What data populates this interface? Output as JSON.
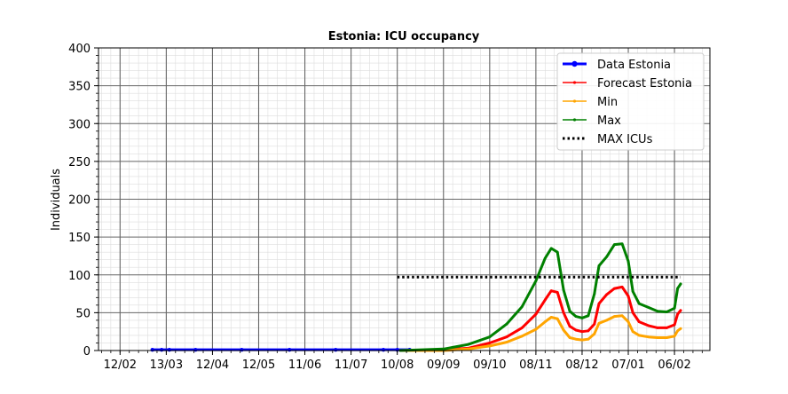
{
  "chart_data": {
    "type": "line",
    "title": "Estonia: ICU occupancy",
    "xlabel": "",
    "ylabel": "Individuals",
    "ylim": [
      0,
      400
    ],
    "yticks": [
      0,
      50,
      100,
      150,
      200,
      250,
      300,
      350,
      400
    ],
    "xlim": [
      "2020-01-29",
      "2021-03-01"
    ],
    "xticks": [
      {
        "date": "2020-02-12",
        "label": "12/02"
      },
      {
        "date": "2020-03-13",
        "label": "13/03"
      },
      {
        "date": "2020-04-12",
        "label": "12/04"
      },
      {
        "date": "2020-05-12",
        "label": "12/05"
      },
      {
        "date": "2020-06-11",
        "label": "11/06"
      },
      {
        "date": "2020-07-11",
        "label": "11/07"
      },
      {
        "date": "2020-08-10",
        "label": "10/08"
      },
      {
        "date": "2020-09-09",
        "label": "09/09"
      },
      {
        "date": "2020-10-09",
        "label": "09/10"
      },
      {
        "date": "2020-11-08",
        "label": "08/11"
      },
      {
        "date": "2020-12-08",
        "label": "08/12"
      },
      {
        "date": "2021-01-07",
        "label": "07/01"
      },
      {
        "date": "2021-02-06",
        "label": "06/02"
      }
    ],
    "grid": true,
    "legend_position": "top-right",
    "series": [
      {
        "name": "Data Estonia",
        "color": "#0000ff",
        "style": "solid-with-dot-markers",
        "x": [
          "2020-03-04",
          "2020-03-10",
          "2020-03-15",
          "2020-04-01",
          "2020-05-01",
          "2020-06-01",
          "2020-07-01",
          "2020-08-01",
          "2020-08-10",
          "2020-08-18"
        ],
        "y": [
          1,
          1,
          1,
          1,
          1,
          1,
          1,
          1,
          1,
          1
        ]
      },
      {
        "name": "Forecast Estonia",
        "color": "#ff0000",
        "style": "solid-small-markers",
        "x": [
          "2020-08-12",
          "2020-09-09",
          "2020-09-25",
          "2020-10-09",
          "2020-10-20",
          "2020-10-30",
          "2020-11-08",
          "2020-11-14",
          "2020-11-18",
          "2020-11-22",
          "2020-11-26",
          "2020-11-30",
          "2020-12-04",
          "2020-12-08",
          "2020-12-12",
          "2020-12-16",
          "2020-12-19",
          "2020-12-24",
          "2020-12-29",
          "2021-01-03",
          "2021-01-07",
          "2021-01-10",
          "2021-01-14",
          "2021-01-20",
          "2021-01-26",
          "2021-02-01",
          "2021-02-06",
          "2021-02-08",
          "2021-02-10"
        ],
        "y": [
          0,
          1,
          3,
          10,
          18,
          30,
          48,
          67,
          79,
          77,
          50,
          32,
          27,
          25,
          26,
          35,
          62,
          74,
          82,
          84,
          72,
          50,
          38,
          33,
          30,
          30,
          34,
          48,
          53
        ]
      },
      {
        "name": "Min",
        "color": "#ffa500",
        "style": "solid-small-markers",
        "x": [
          "2020-08-12",
          "2020-09-09",
          "2020-09-25",
          "2020-10-09",
          "2020-10-20",
          "2020-10-30",
          "2020-11-08",
          "2020-11-14",
          "2020-11-18",
          "2020-11-22",
          "2020-11-26",
          "2020-11-30",
          "2020-12-04",
          "2020-12-08",
          "2020-12-12",
          "2020-12-16",
          "2020-12-19",
          "2020-12-24",
          "2020-12-29",
          "2021-01-03",
          "2021-01-07",
          "2021-01-10",
          "2021-01-14",
          "2021-01-20",
          "2021-01-26",
          "2021-02-01",
          "2021-02-06",
          "2021-02-08",
          "2021-02-10"
        ],
        "y": [
          0,
          0,
          2,
          6,
          11,
          19,
          28,
          38,
          44,
          42,
          27,
          17,
          15,
          14,
          15,
          22,
          36,
          40,
          45,
          46,
          38,
          25,
          20,
          18,
          17,
          17,
          19,
          26,
          29
        ]
      },
      {
        "name": "Max",
        "color": "#008000",
        "style": "solid-small-markers",
        "x": [
          "2020-08-12",
          "2020-09-09",
          "2020-09-25",
          "2020-10-09",
          "2020-10-20",
          "2020-10-30",
          "2020-11-08",
          "2020-11-14",
          "2020-11-18",
          "2020-11-22",
          "2020-11-26",
          "2020-11-30",
          "2020-12-04",
          "2020-12-08",
          "2020-12-12",
          "2020-12-16",
          "2020-12-19",
          "2020-12-24",
          "2020-12-29",
          "2021-01-03",
          "2021-01-07",
          "2021-01-10",
          "2021-01-14",
          "2021-01-20",
          "2021-01-26",
          "2021-02-01",
          "2021-02-06",
          "2021-02-08",
          "2021-02-10"
        ],
        "y": [
          0,
          2,
          8,
          18,
          35,
          58,
          92,
          122,
          135,
          130,
          80,
          52,
          45,
          43,
          46,
          75,
          112,
          124,
          140,
          141,
          118,
          78,
          62,
          57,
          52,
          51,
          56,
          82,
          88
        ]
      },
      {
        "name": "MAX ICUs",
        "color": "#000000",
        "style": "dotted",
        "x": [
          "2020-08-10",
          "2021-02-10"
        ],
        "y": [
          97,
          97
        ]
      }
    ]
  }
}
